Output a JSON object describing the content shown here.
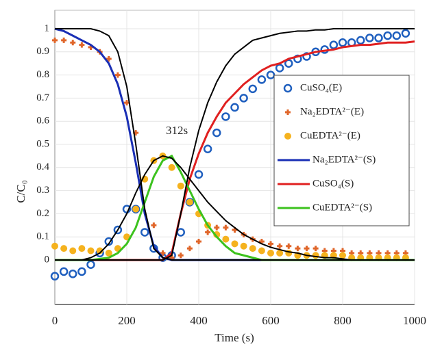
{
  "chart_data": {
    "type": "line",
    "ylabel": "C/C₀",
    "xlabel": "Time (s)",
    "annotation": "312s",
    "xlim": [
      0,
      1000
    ],
    "ylim": [
      -0.19,
      1.08
    ],
    "xticks": [
      0,
      200,
      400,
      600,
      800,
      1000
    ],
    "yticks": [
      0,
      0.1,
      0.2,
      0.3,
      0.4,
      0.5,
      0.6,
      0.7,
      0.8,
      0.9,
      1
    ],
    "grid": true,
    "x": [
      0,
      25,
      50,
      75,
      100,
      125,
      150,
      175,
      200,
      225,
      250,
      275,
      300,
      325,
      350,
      375,
      400,
      425,
      450,
      475,
      500,
      525,
      550,
      575,
      600,
      625,
      650,
      675,
      700,
      725,
      750,
      775,
      800,
      825,
      850,
      875,
      900,
      925,
      950,
      975,
      1000
    ],
    "series": [
      {
        "name": "CuSO₄(E)",
        "color": "#1f5fbf",
        "style": "circle-open",
        "values": [
          -0.07,
          -0.05,
          -0.06,
          -0.05,
          -0.02,
          0.03,
          0.08,
          0.13,
          0.22,
          0.22,
          0.12,
          0.05,
          0.01,
          0.02,
          0.12,
          0.25,
          0.37,
          0.48,
          0.55,
          0.62,
          0.66,
          0.7,
          0.74,
          0.78,
          0.8,
          0.83,
          0.85,
          0.87,
          0.88,
          0.9,
          0.91,
          0.93,
          0.94,
          0.94,
          0.95,
          0.96,
          0.96,
          0.97,
          0.97,
          0.98,
          null
        ]
      },
      {
        "name": "Na₂EDTA²⁻(E)",
        "color": "#e0662a",
        "style": "plus",
        "values": [
          0.95,
          0.95,
          0.94,
          0.93,
          0.92,
          0.9,
          0.87,
          0.8,
          0.68,
          0.55,
          0.35,
          0.15,
          0.03,
          0.01,
          0.02,
          0.05,
          0.08,
          0.12,
          0.14,
          0.14,
          0.13,
          0.11,
          0.09,
          0.08,
          0.07,
          0.06,
          0.06,
          0.05,
          0.05,
          0.05,
          0.04,
          0.04,
          0.04,
          0.03,
          0.03,
          0.03,
          0.03,
          0.03,
          0.03,
          0.03,
          null
        ]
      },
      {
        "name": "CuEDTA²⁻(E)",
        "color": "#f5b21e",
        "style": "dot",
        "values": [
          0.06,
          0.05,
          0.04,
          0.05,
          0.04,
          0.04,
          0.03,
          0.05,
          0.1,
          0.22,
          0.35,
          0.43,
          0.45,
          0.4,
          0.32,
          0.25,
          0.2,
          0.15,
          0.11,
          0.09,
          0.07,
          0.06,
          0.05,
          0.04,
          0.03,
          0.03,
          0.03,
          0.02,
          0.02,
          0.02,
          0.02,
          0.02,
          0.02,
          0.01,
          0.01,
          0.01,
          0.01,
          0.01,
          0.01,
          0.01,
          null
        ]
      },
      {
        "name": "Na₂EDTA²⁻(S)",
        "color": "#1a2fb5",
        "style": "line",
        "values": [
          1,
          0.99,
          0.97,
          0.95,
          0.93,
          0.9,
          0.85,
          0.76,
          0.62,
          0.42,
          0.2,
          0.06,
          0.01,
          0,
          0,
          0,
          0,
          0,
          0,
          0,
          0,
          0,
          0,
          0,
          0,
          0,
          0,
          0,
          0,
          0,
          0,
          0,
          0,
          0,
          0,
          0,
          0,
          0,
          0,
          0,
          0
        ]
      },
      {
        "name": "CuSO₄(S)",
        "color": "#e02020",
        "style": "line",
        "values": [
          0,
          0,
          0,
          0,
          0,
          0,
          0,
          0,
          0,
          0,
          0,
          0,
          0,
          0.03,
          0.2,
          0.35,
          0.46,
          0.55,
          0.62,
          0.68,
          0.72,
          0.76,
          0.79,
          0.82,
          0.84,
          0.85,
          0.87,
          0.88,
          0.89,
          0.9,
          0.905,
          0.91,
          0.92,
          0.925,
          0.93,
          0.93,
          0.935,
          0.94,
          0.94,
          0.94,
          0.945
        ]
      },
      {
        "name": "CuEDTA²⁻(S)",
        "color": "#3cc21e",
        "style": "line",
        "values": [
          0,
          0,
          0,
          0,
          0,
          0.005,
          0.01,
          0.03,
          0.07,
          0.14,
          0.25,
          0.36,
          0.43,
          0.45,
          0.38,
          0.3,
          0.22,
          0.15,
          0.1,
          0.06,
          0.03,
          0.02,
          0.01,
          0,
          0,
          0,
          0,
          0,
          0,
          0,
          0,
          0,
          0,
          0,
          0,
          0,
          0,
          0,
          0,
          0,
          0
        ]
      },
      {
        "color": "#000000",
        "style": "line",
        "values": [
          1,
          1,
          1,
          1,
          1,
          0.99,
          0.97,
          0.9,
          0.75,
          0.5,
          0.22,
          0.05,
          0.01,
          0,
          0,
          0,
          0,
          0,
          0,
          0,
          0,
          0,
          0,
          0,
          0,
          0,
          0,
          0,
          0,
          0,
          0,
          0,
          0,
          0,
          0,
          0,
          0,
          0,
          0,
          0,
          0
        ]
      },
      {
        "color": "#000000",
        "style": "line",
        "values": [
          0,
          0,
          0,
          0,
          0,
          0,
          0,
          0,
          0,
          0,
          0,
          0,
          0,
          0.02,
          0.2,
          0.4,
          0.56,
          0.68,
          0.77,
          0.84,
          0.89,
          0.92,
          0.95,
          0.96,
          0.97,
          0.98,
          0.985,
          0.99,
          0.99,
          0.995,
          0.995,
          1,
          1,
          1,
          1,
          1,
          1,
          1,
          1,
          1,
          1
        ]
      },
      {
        "color": "#000000",
        "style": "line",
        "values": [
          0,
          0,
          0,
          0,
          0.01,
          0.03,
          0.07,
          0.13,
          0.2,
          0.29,
          0.37,
          0.43,
          0.45,
          0.44,
          0.4,
          0.35,
          0.3,
          0.25,
          0.21,
          0.17,
          0.14,
          0.11,
          0.09,
          0.07,
          0.055,
          0.045,
          0.035,
          0.03,
          0.02,
          0.015,
          0.01,
          0.01,
          0.005,
          0,
          0,
          0,
          0,
          0,
          0,
          0,
          0
        ]
      }
    ]
  }
}
